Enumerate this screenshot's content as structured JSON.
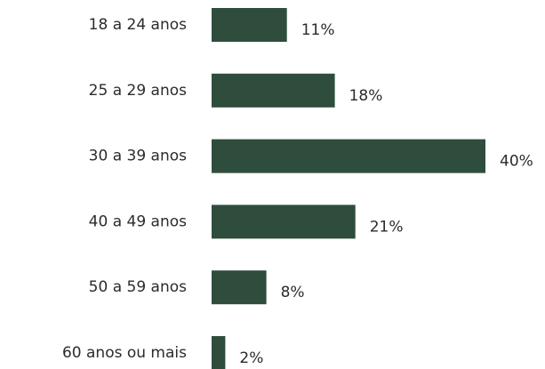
{
  "chart_data": {
    "type": "bar",
    "orientation": "horizontal",
    "categories": [
      "18 a 24 anos",
      "25 a 29 anos",
      "30 a 39 anos",
      "40 a 49 anos",
      "50 a 59 anos",
      "60 anos ou mais"
    ],
    "values": [
      11,
      18,
      40,
      21,
      8,
      2
    ],
    "value_labels": [
      "11%",
      "18%",
      "40%",
      "21%",
      "8%",
      "2%"
    ],
    "color": "#2f4d3c"
  }
}
